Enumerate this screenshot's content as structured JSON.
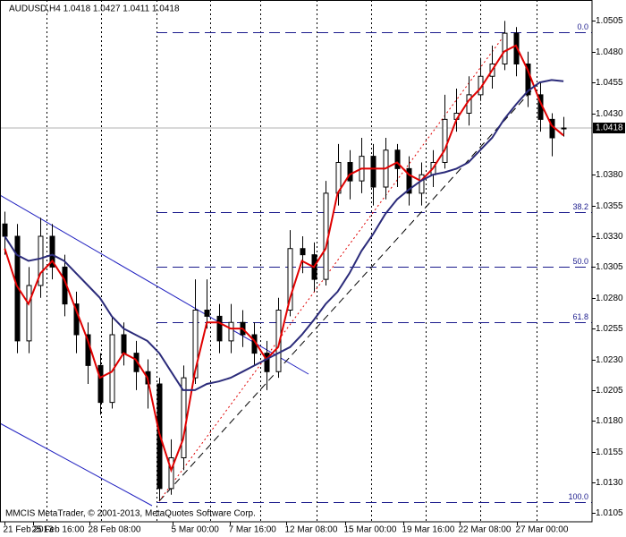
{
  "chart_data": {
    "type": "candlestick",
    "title": "AUDUSD,H4  1.0418 1.0427 1.0411 1.0418",
    "footer": "MMCIS MetaTrader, © 2001-2013, MetaQuotes Software Corp.",
    "open": [
      1.034,
      1.033,
      1.0245,
      1.029,
      1.033,
      1.0305,
      1.0275,
      1.025,
      1.0225,
      1.0195,
      1.025,
      1.0235,
      1.022,
      1.021,
      1.0125,
      1.015,
      1.0215,
      1.027,
      1.0265,
      1.0245,
      1.026,
      1.025,
      1.0235,
      1.022,
      1.027,
      1.032,
      1.0315,
      1.0295,
      1.0365,
      1.039,
      1.0375,
      1.0395,
      1.037,
      1.04,
      1.0385,
      1.0365,
      1.038,
      1.039,
      1.0425,
      1.043,
      1.0445,
      1.046,
      1.047,
      1.0495,
      1.047,
      1.0445,
      1.0425,
      1.0418
    ],
    "high": [
      1.035,
      1.034,
      1.0305,
      1.0345,
      1.034,
      1.0315,
      1.0285,
      1.026,
      1.0235,
      1.0265,
      1.026,
      1.0245,
      1.023,
      1.0215,
      1.0165,
      1.0225,
      1.0295,
      1.0295,
      1.0275,
      1.0275,
      1.027,
      1.026,
      1.0245,
      1.028,
      1.0335,
      1.033,
      1.0325,
      1.0375,
      1.0405,
      1.04,
      1.041,
      1.0405,
      1.041,
      1.0405,
      1.0395,
      1.039,
      1.04,
      1.0445,
      1.045,
      1.046,
      1.0475,
      1.0485,
      1.0505,
      1.05,
      1.048,
      1.0455,
      1.043,
      1.0427
    ],
    "low": [
      1.0315,
      1.0235,
      1.0235,
      1.028,
      1.0295,
      1.0265,
      1.0235,
      1.021,
      1.0185,
      1.019,
      1.0225,
      1.0205,
      1.019,
      1.0115,
      1.012,
      1.014,
      1.021,
      1.0255,
      1.0235,
      1.0235,
      1.024,
      1.0225,
      1.0205,
      1.0215,
      1.0265,
      1.03,
      1.0285,
      1.029,
      1.0355,
      1.036,
      1.0365,
      1.0355,
      1.036,
      1.037,
      1.0355,
      1.0355,
      1.037,
      1.0385,
      1.0415,
      1.042,
      1.044,
      1.045,
      1.0465,
      1.046,
      1.0435,
      1.0415,
      1.0395,
      1.0411
    ],
    "close": [
      1.033,
      1.0245,
      1.029,
      1.033,
      1.0305,
      1.0275,
      1.025,
      1.0225,
      1.0195,
      1.025,
      1.0235,
      1.022,
      1.021,
      1.0125,
      1.015,
      1.0215,
      1.027,
      1.0265,
      1.0245,
      1.026,
      1.025,
      1.0235,
      1.022,
      1.027,
      1.032,
      1.0315,
      1.0295,
      1.0365,
      1.039,
      1.0375,
      1.0395,
      1.037,
      1.04,
      1.0385,
      1.0365,
      1.038,
      1.039,
      1.0425,
      1.043,
      1.0445,
      1.046,
      1.047,
      1.0495,
      1.047,
      1.0445,
      1.0425,
      1.041,
      1.0418
    ],
    "up_color": "#ffffff",
    "down_color": "#000000",
    "overlays": [
      {
        "color": "#e00000",
        "values": [
          1.032,
          1.029,
          1.0275,
          1.03,
          1.031,
          1.0295,
          1.027,
          1.0245,
          1.0215,
          1.022,
          1.0235,
          1.023,
          1.0215,
          1.017,
          1.014,
          1.0165,
          1.022,
          1.026,
          1.026,
          1.0255,
          1.0255,
          1.0245,
          1.023,
          1.024,
          1.028,
          1.031,
          1.0305,
          1.032,
          1.0365,
          1.038,
          1.0385,
          1.0385,
          1.0385,
          1.039,
          1.038,
          1.0375,
          1.0385,
          1.04,
          1.0425,
          1.044,
          1.045,
          1.0465,
          1.048,
          1.0485,
          1.0465,
          1.044,
          1.042,
          1.0412
        ]
      },
      {
        "color": "#2b2b7a",
        "values": [
          1.033,
          1.0315,
          1.031,
          1.0312,
          1.0315,
          1.031,
          1.03,
          1.029,
          1.028,
          1.0265,
          1.0255,
          1.025,
          1.0245,
          1.0235,
          1.022,
          1.0205,
          1.0205,
          1.021,
          1.0212,
          1.0215,
          1.022,
          1.0225,
          1.023,
          1.0235,
          1.024,
          1.025,
          1.0262,
          1.0275,
          1.0285,
          1.03,
          1.0318,
          1.0332,
          1.0348,
          1.036,
          1.0368,
          1.0375,
          1.038,
          1.0382,
          1.0385,
          1.039,
          1.04,
          1.041,
          1.0425,
          1.0437,
          1.0448,
          1.0455,
          1.0457,
          1.0456
        ]
      }
    ],
    "fib_color": "#1a1a8c",
    "fib_levels": [
      {
        "value": 1.0496,
        "label": "0.0"
      },
      {
        "value": 1.035,
        "label": "38.2"
      },
      {
        "value": 1.0305,
        "label": "50.0"
      },
      {
        "value": 1.026,
        "label": "61.8"
      },
      {
        "value": 1.0114,
        "label": "100.0"
      }
    ],
    "current_price": {
      "value": 1.0418,
      "label": "1.0418"
    },
    "ylim": [
      1.0098,
      1.0522
    ],
    "yticks": [
      {
        "value": 1.0505,
        "label": "1.0505"
      },
      {
        "value": 1.048,
        "label": "1.0480"
      },
      {
        "value": 1.0455,
        "label": "1.0455"
      },
      {
        "value": 1.043,
        "label": "1.0430"
      },
      {
        "value": 1.038,
        "label": "1.0380"
      },
      {
        "value": 1.0355,
        "label": "1.0355"
      },
      {
        "value": 1.033,
        "label": "1.0330"
      },
      {
        "value": 1.0305,
        "label": "1.0305"
      },
      {
        "value": 1.028,
        "label": "1.0280"
      },
      {
        "value": 1.0255,
        "label": "1.0255"
      },
      {
        "value": 1.023,
        "label": "1.0230"
      },
      {
        "value": 1.0205,
        "label": "1.0205"
      },
      {
        "value": 1.018,
        "label": "1.0180"
      },
      {
        "value": 1.0155,
        "label": "1.0155"
      },
      {
        "value": 1.013,
        "label": "1.0130"
      },
      {
        "value": 1.0105,
        "label": "1.0105"
      }
    ],
    "xlim": [
      -0.4,
      49.4
    ],
    "xticks": [
      {
        "value": 0,
        "label": "21 Feb 2013"
      },
      {
        "value": 2.4,
        "label": "25 Feb 16:00"
      },
      {
        "value": 7.1,
        "label": "28 Feb 08:00"
      },
      {
        "value": 14.1,
        "label": "5 Mar 00:00"
      },
      {
        "value": 18.9,
        "label": "7 Mar 16:00"
      },
      {
        "value": 23.7,
        "label": "12 Mar 08:00"
      },
      {
        "value": 28.6,
        "label": "15 Mar 00:00"
      },
      {
        "value": 33.5,
        "label": "19 Mar 16:00"
      },
      {
        "value": 38.3,
        "label": "22 Mar 08:00"
      },
      {
        "value": 43.1,
        "label": "27 Mar 00:00"
      }
    ],
    "xgrid": [
      3.5,
      8.1,
      12.8,
      17.3,
      21.5,
      26.2,
      30.8,
      35.4,
      40.0,
      44.7
    ]
  }
}
